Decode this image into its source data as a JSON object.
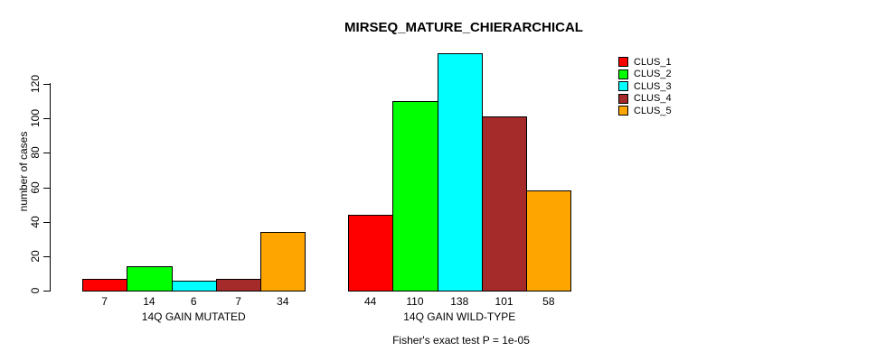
{
  "chart_data": {
    "type": "bar",
    "title": "MIRSEQ_MATURE_CHIERARCHICAL",
    "ylabel": "number of cases",
    "footer": "Fisher's exact test P = 1e-05",
    "ylim": [
      0,
      138
    ],
    "yticks": [
      0,
      20,
      40,
      60,
      80,
      100,
      120
    ],
    "grid": false,
    "legend_position": "right",
    "value_labels_shown": true,
    "series": [
      {
        "name": "CLUS_1",
        "color": "#FF0000"
      },
      {
        "name": "CLUS_2",
        "color": "#00FF00"
      },
      {
        "name": "CLUS_3",
        "color": "#00FFFF"
      },
      {
        "name": "CLUS_4",
        "color": "#A52A2A"
      },
      {
        "name": "CLUS_5",
        "color": "#FFA500"
      }
    ],
    "categories": [
      "14Q GAIN MUTATED",
      "14Q GAIN WILD-TYPE"
    ],
    "groups": [
      {
        "label": "14Q GAIN MUTATED",
        "values": [
          7,
          14,
          6,
          7,
          34
        ]
      },
      {
        "label": "14Q GAIN WILD-TYPE",
        "values": [
          44,
          110,
          138,
          101,
          58
        ]
      }
    ]
  }
}
